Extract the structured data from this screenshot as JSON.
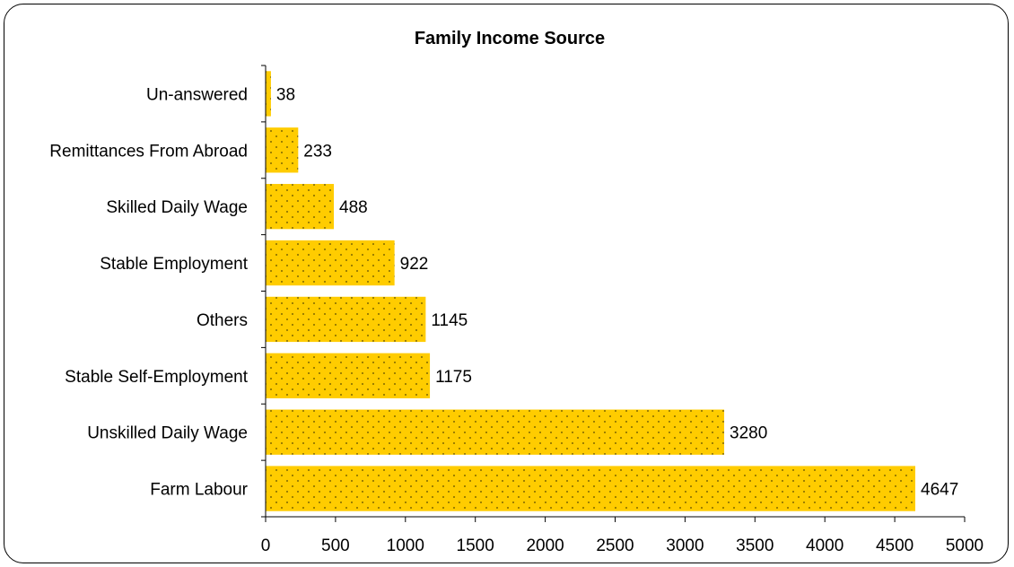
{
  "chart_data": {
    "type": "bar",
    "orientation": "horizontal",
    "title": "Family Income Source",
    "categories": [
      "Un-answered",
      "Remittances From Abroad",
      "Skilled Daily Wage",
      "Stable Employment",
      "Others",
      "Stable Self-Employment",
      "Unskilled Daily Wage",
      "Farm Labour"
    ],
    "values": [
      38,
      233,
      488,
      922,
      1145,
      1175,
      3280,
      4647
    ],
    "data_labels": [
      "38",
      "233",
      "488",
      "922",
      "1145",
      "1175",
      "3280",
      "4647"
    ],
    "xlim": [
      0,
      5000
    ],
    "x_ticks": [
      0,
      500,
      1000,
      1500,
      2000,
      2500,
      3000,
      3500,
      4000,
      4500,
      5000
    ],
    "x_tick_labels": [
      "0",
      "500",
      "1000",
      "1500",
      "2000",
      "2500",
      "3000",
      "3500",
      "4000",
      "4500",
      "5000"
    ],
    "xlabel": "",
    "ylabel": "",
    "grid": false,
    "legend": "none",
    "colors": {
      "bar_fill": "#FFCC00",
      "bar_dots": "#5a4a00",
      "axis": "#000000"
    }
  }
}
